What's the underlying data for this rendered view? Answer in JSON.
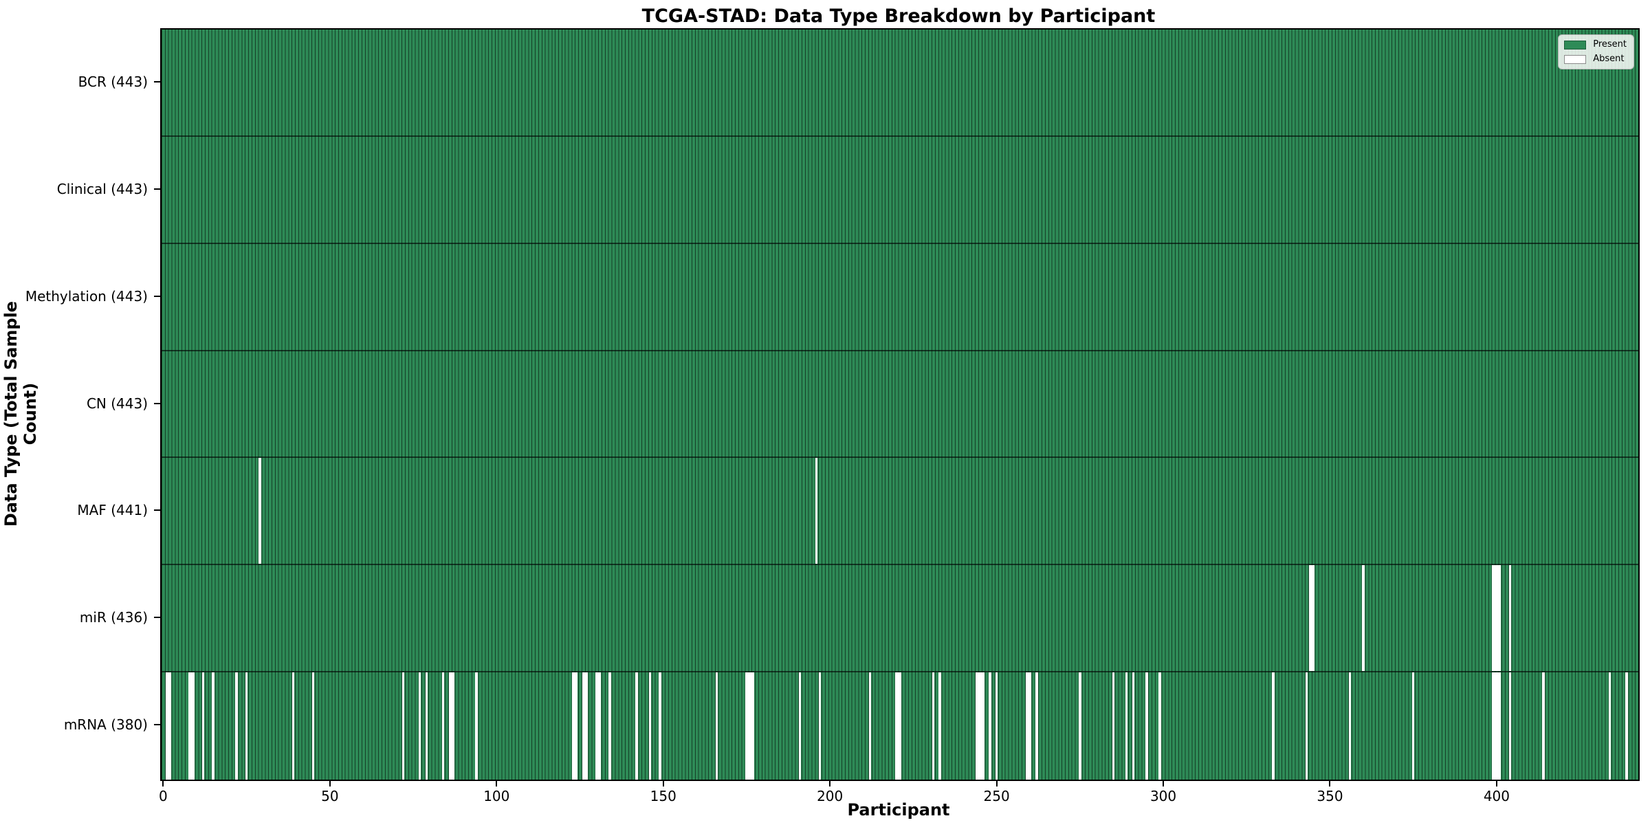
{
  "figure": {
    "title": "TCGA-STAD: Data Type Breakdown by Participant",
    "xlabel": "Participant",
    "ylabel": "Data Type (Total Sample Count)"
  },
  "legend": {
    "items": [
      {
        "label": "Present",
        "color": "#2e8b57"
      },
      {
        "label": "Absent",
        "color": "#ffffff"
      }
    ]
  },
  "chart_data": {
    "type": "heatmap",
    "title": "TCGA-STAD: Data Type Breakdown by Participant",
    "xlabel": "Participant",
    "ylabel": "Data Type (Total Sample Count)",
    "legend_position": "upper right",
    "n_participants": 443,
    "x_axis_range": [
      0,
      443
    ],
    "x_ticks": [
      0,
      50,
      100,
      150,
      200,
      250,
      300,
      350,
      400
    ],
    "colors": {
      "present": "#2e8b57",
      "absent": "#ffffff",
      "bar_edge": "rgba(0,0,0,0.55)",
      "row_divider": "rgba(0,0,0,0.6)"
    },
    "rows": [
      {
        "name": "BCR",
        "label": "BCR (443)",
        "total": 443,
        "absent_participants": []
      },
      {
        "name": "Clinical",
        "label": "Clinical (443)",
        "total": 443,
        "absent_participants": []
      },
      {
        "name": "Methylation",
        "label": "Methylation (443)",
        "total": 443,
        "absent_participants": []
      },
      {
        "name": "CN",
        "label": "CN (443)",
        "total": 443,
        "absent_participants": []
      },
      {
        "name": "MAF",
        "label": "MAF (441)",
        "total": 441,
        "absent_participants": [
          29,
          196
        ]
      },
      {
        "name": "miR",
        "label": "miR (436)",
        "total": 436,
        "absent_participants": [
          344,
          345,
          360,
          399,
          400,
          401,
          404
        ]
      },
      {
        "name": "mRNA",
        "label": "mRNA (380)",
        "total": 380,
        "absent_participants": [
          1,
          2,
          8,
          9,
          12,
          15,
          22,
          25,
          39,
          45,
          72,
          77,
          79,
          84,
          86,
          87,
          94,
          123,
          124,
          126,
          127,
          130,
          131,
          134,
          142,
          146,
          149,
          166,
          175,
          176,
          177,
          191,
          197,
          212,
          220,
          221,
          231,
          233,
          244,
          245,
          246,
          248,
          250,
          259,
          260,
          262,
          275,
          285,
          289,
          291,
          295,
          299,
          333,
          343,
          356,
          375,
          399,
          400,
          401,
          404,
          414,
          434,
          439
        ]
      }
    ]
  }
}
